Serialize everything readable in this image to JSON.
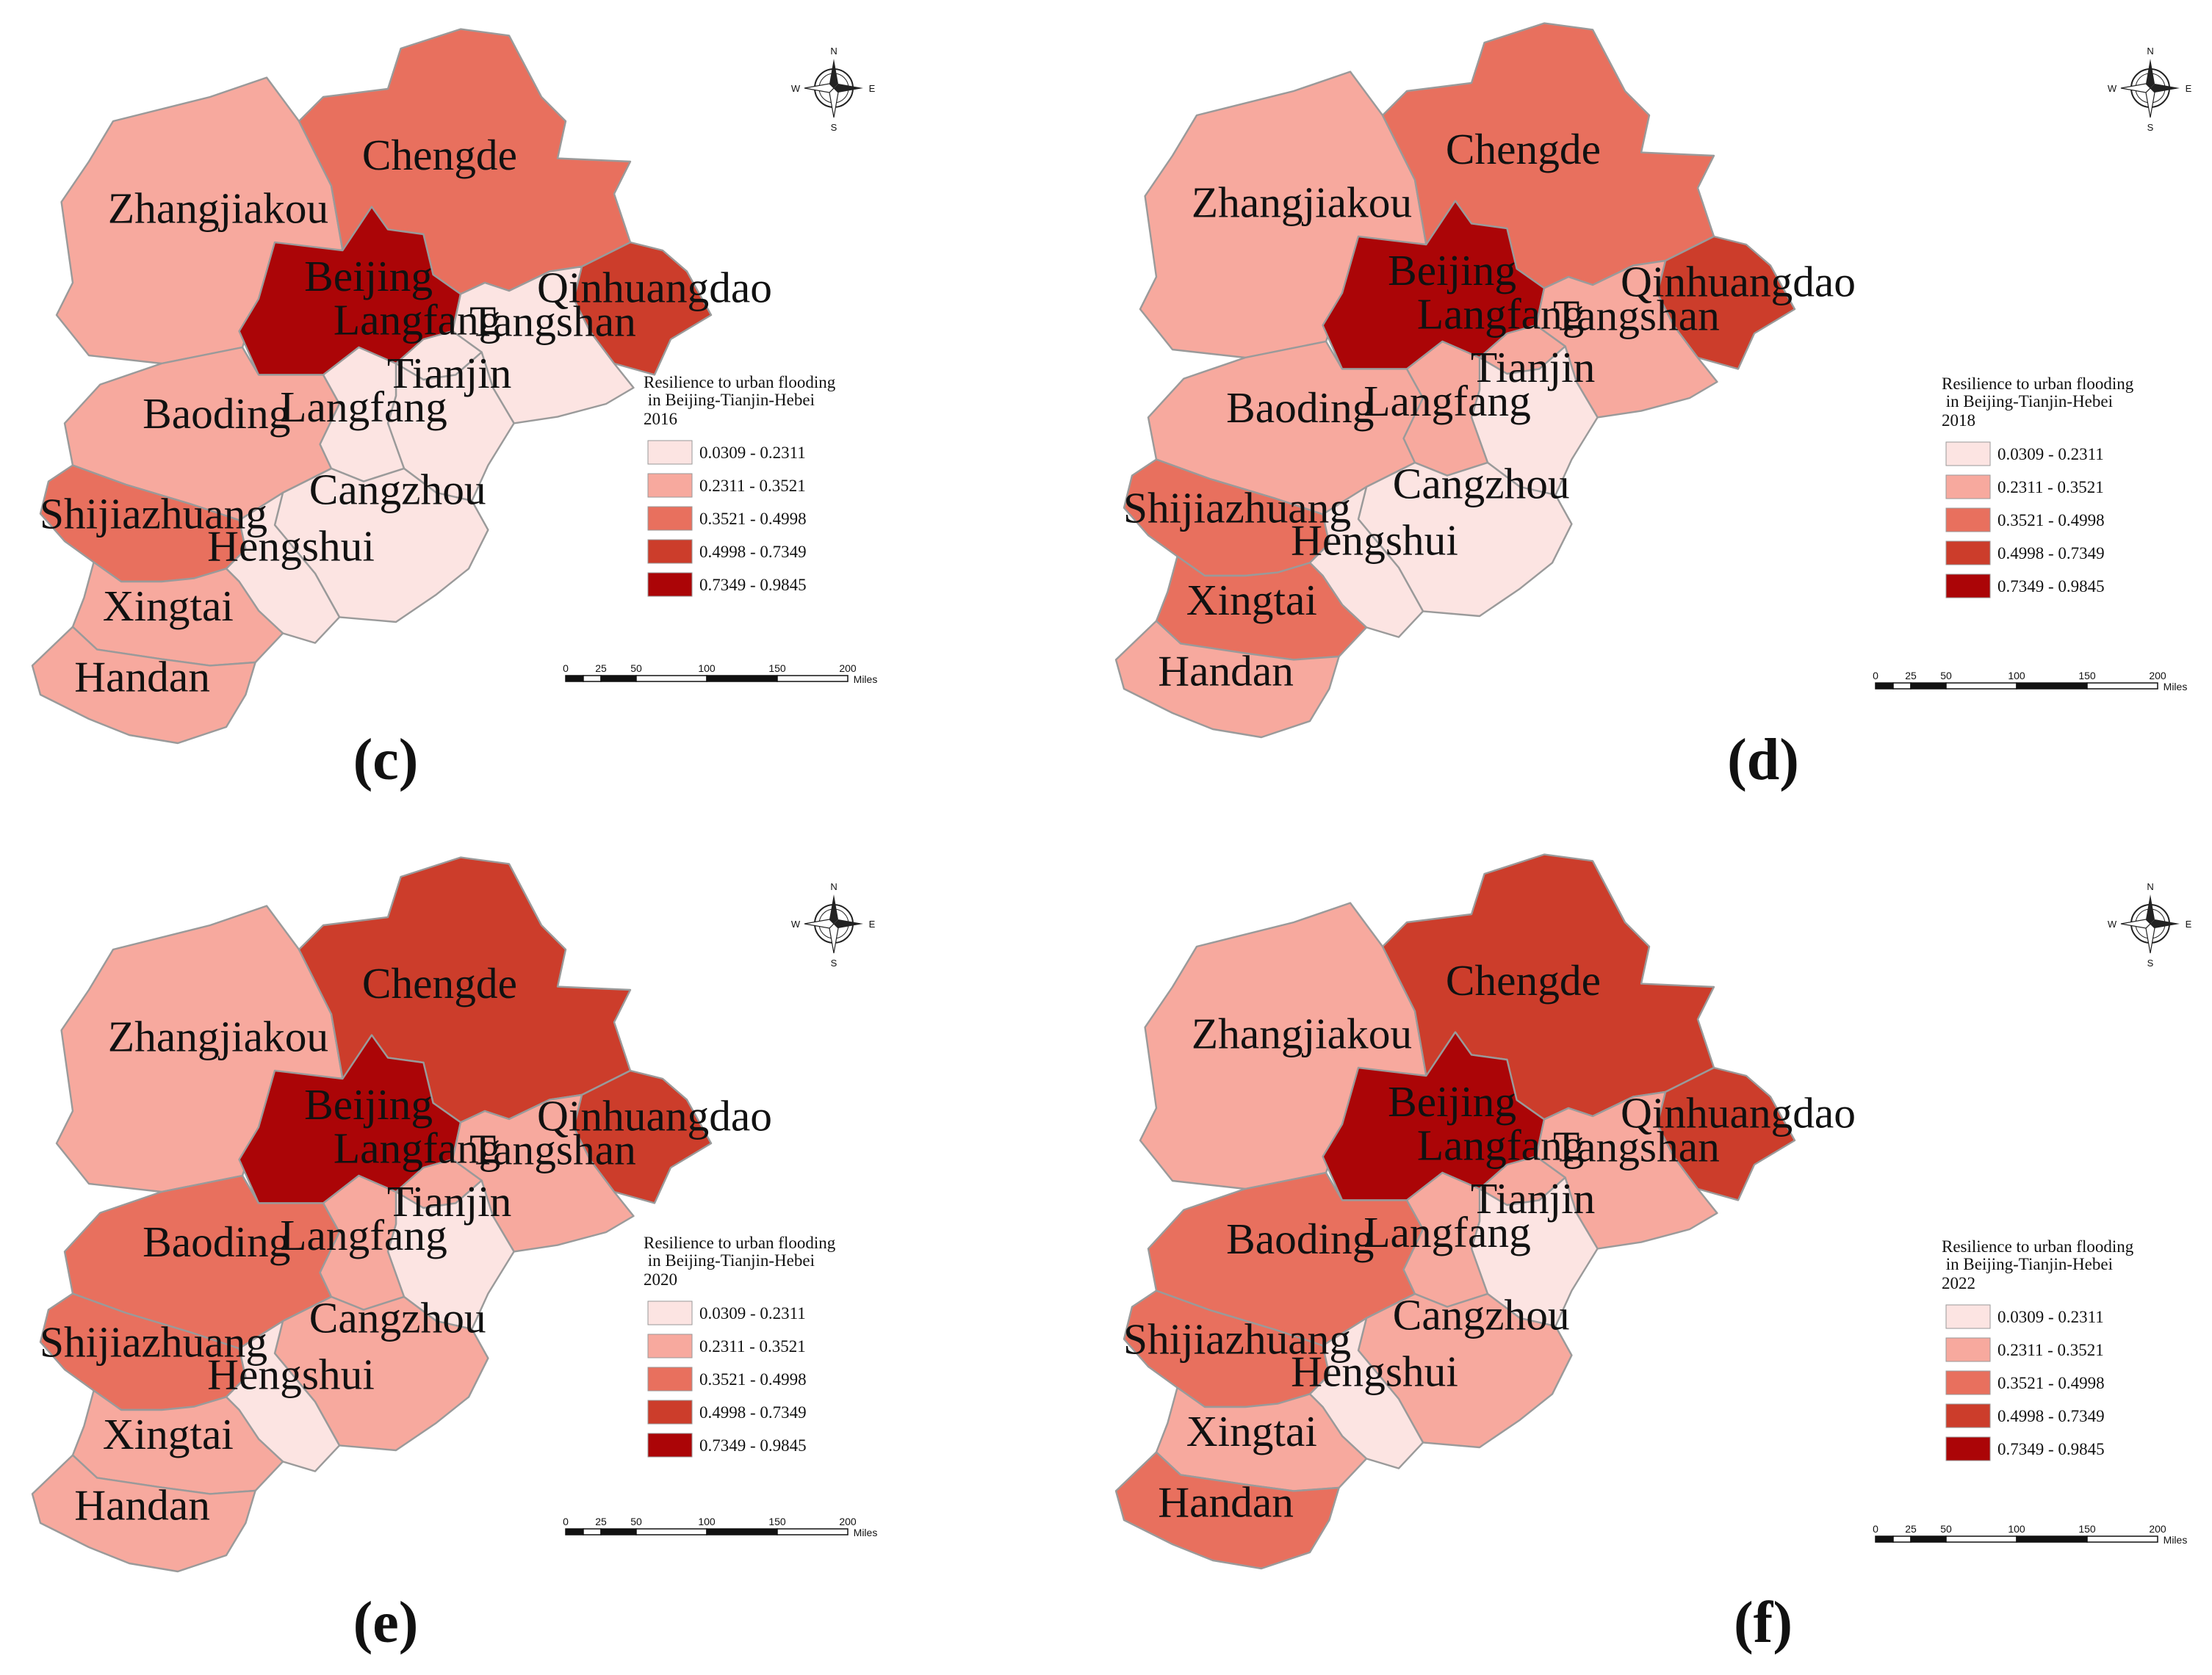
{
  "figure": {
    "legend_title_line1": "Resilience to urban flooding",
    "legend_title_line2": " in Beijing-Tianjin-Hebei",
    "classes": [
      {
        "label": "0.0309 - 0.2311",
        "color": "#fce4e2"
      },
      {
        "label": "0.2311 - 0.3521",
        "color": "#f7a99e"
      },
      {
        "label": "0.3521 - 0.4998",
        "color": "#e8705e"
      },
      {
        "label": "0.4998 - 0.7349",
        "color": "#cc3d2b"
      },
      {
        "label": "0.7349 - 0.9845",
        "color": "#ab0507"
      }
    ],
    "scale": {
      "ticks": [
        "0",
        "25",
        "50",
        "100",
        "150",
        "200"
      ],
      "unit": "Miles"
    },
    "compass": {
      "n": "N",
      "s": "S",
      "e": "E",
      "w": "W"
    },
    "city_names": {
      "zhangjiakou": "Zhangjiakou",
      "chengde": "Chengde",
      "beijing": "Beijing",
      "qinhuangdao": "Qinhuangdao",
      "tangshan": "Tangshan",
      "langfang_north": "Langfang",
      "tianjin": "Tianjin",
      "baoding": "Baoding",
      "langfang_south": "Langfang",
      "cangzhou": "Cangzhou",
      "shijiazhuang": "Shijiazhuang",
      "hengshui": "Hengshui",
      "xingtai": "Xingtai",
      "handan": "Handan"
    }
  },
  "panels": [
    {
      "label": "(c)",
      "year": "2016",
      "classes": {
        "zhangjiakou": 1,
        "chengde": 2,
        "beijing": 4,
        "qinhuangdao": 3,
        "tangshan": 0,
        "langfang_north": 0,
        "tianjin": 0,
        "baoding": 1,
        "langfang_south": 0,
        "cangzhou": 0,
        "shijiazhuang": 2,
        "hengshui": 0,
        "xingtai": 1,
        "handan": 1
      }
    },
    {
      "label": "(d)",
      "year": "2018",
      "classes": {
        "zhangjiakou": 1,
        "chengde": 2,
        "beijing": 4,
        "qinhuangdao": 3,
        "tangshan": 1,
        "langfang_north": 1,
        "tianjin": 0,
        "baoding": 1,
        "langfang_south": 1,
        "cangzhou": 0,
        "shijiazhuang": 2,
        "hengshui": 0,
        "xingtai": 2,
        "handan": 1
      }
    },
    {
      "label": "(e)",
      "year": "2020",
      "classes": {
        "zhangjiakou": 1,
        "chengde": 3,
        "beijing": 4,
        "qinhuangdao": 3,
        "tangshan": 1,
        "langfang_north": 1,
        "tianjin": 0,
        "baoding": 2,
        "langfang_south": 1,
        "cangzhou": 1,
        "shijiazhuang": 2,
        "hengshui": 0,
        "xingtai": 1,
        "handan": 1
      }
    },
    {
      "label": "(f)",
      "year": "2022",
      "classes": {
        "zhangjiakou": 1,
        "chengde": 3,
        "beijing": 4,
        "qinhuangdao": 3,
        "tangshan": 1,
        "langfang_north": 1,
        "tianjin": 0,
        "baoding": 2,
        "langfang_south": 1,
        "cangzhou": 1,
        "shijiazhuang": 2,
        "hengshui": 0,
        "xingtai": 1,
        "handan": 2
      }
    }
  ]
}
